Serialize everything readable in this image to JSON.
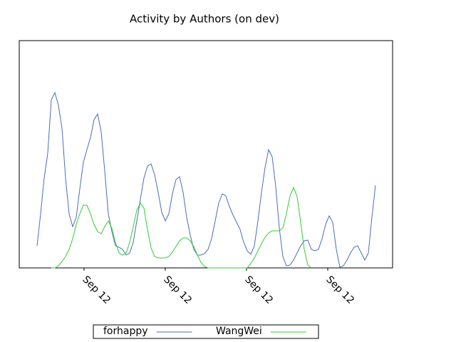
{
  "chart_data": {
    "type": "line",
    "title": "Activity by Authors (on dev)",
    "xlim": [
      0,
      104.8
    ],
    "ylim": [
      0,
      319
    ],
    "xticks": [
      {
        "value": 18.2,
        "label": "Sep 12"
      },
      {
        "value": 41,
        "label": "Sep 12"
      },
      {
        "value": 63.8,
        "label": "Sep 12"
      },
      {
        "value": 86.6,
        "label": "Sep 12"
      }
    ],
    "series": [
      {
        "name": "forhappy",
        "color": "#4a6db8",
        "x": [
          5,
          6,
          7,
          8,
          9,
          10,
          11,
          12,
          13,
          14,
          15,
          16,
          17,
          18,
          19,
          20,
          21,
          22,
          23,
          24,
          25,
          26,
          27,
          28,
          29,
          30,
          31,
          32,
          33,
          34,
          35,
          36,
          37,
          38,
          39,
          40,
          41,
          42,
          43,
          44,
          45,
          46,
          47,
          48,
          49,
          50,
          51,
          52,
          53,
          54,
          55,
          56,
          57,
          58,
          59,
          60,
          61,
          62,
          63,
          64,
          65,
          66,
          67,
          68,
          69,
          70,
          71,
          72,
          73,
          74,
          75,
          76,
          77,
          78,
          79,
          80,
          81,
          82,
          83,
          84,
          85,
          86,
          87,
          88,
          89,
          90,
          91,
          92,
          93,
          94,
          95,
          96,
          97,
          98,
          99,
          100
        ],
        "values": [
          31,
          76,
          126,
          161,
          236,
          246,
          228,
          196,
          126,
          76,
          58,
          71,
          111,
          148,
          166,
          183,
          208,
          216,
          191,
          136,
          76,
          51,
          31,
          29,
          26,
          18,
          21,
          36,
          66,
          96,
          126,
          143,
          146,
          131,
          106,
          78,
          66,
          76,
          104,
          124,
          128,
          106,
          71,
          46,
          26,
          18,
          18,
          20,
          26,
          41,
          66,
          91,
          104,
          101,
          86,
          74,
          64,
          54,
          36,
          24,
          19,
          31,
          66,
          106,
          141,
          166,
          156,
          114,
          56,
          16,
          3,
          4,
          11,
          21,
          31,
          38,
          39,
          26,
          24,
          26,
          41,
          61,
          73,
          64,
          26,
          1,
          3,
          11,
          21,
          29,
          31,
          21,
          11,
          21,
          71,
          116
        ]
      },
      {
        "name": "WangWei",
        "color": "#33cc33",
        "x": [
          9,
          10,
          11,
          12,
          13,
          14,
          15,
          16,
          17,
          18,
          19,
          20,
          21,
          22,
          23,
          24,
          25,
          26,
          27,
          28,
          29,
          30,
          31,
          32,
          33,
          34,
          35,
          36,
          37,
          38,
          39,
          40,
          41,
          42,
          43,
          44,
          45,
          46,
          47,
          48,
          49,
          50,
          51,
          52,
          53,
          54,
          55,
          56,
          57,
          58,
          59,
          60,
          61,
          62,
          63,
          64,
          65,
          66,
          67,
          68,
          69,
          70,
          71,
          72,
          73,
          74,
          75,
          76,
          77,
          78,
          79,
          80,
          81,
          82
        ],
        "values": [
          0,
          0,
          3,
          9,
          16,
          26,
          41,
          61,
          76,
          88,
          88,
          76,
          61,
          51,
          48,
          58,
          66,
          56,
          36,
          21,
          18,
          21,
          36,
          58,
          81,
          91,
          84,
          54,
          28,
          16,
          14,
          14,
          14,
          16,
          22,
          30,
          38,
          42,
          42,
          38,
          30,
          18,
          8,
          2,
          0,
          0,
          0,
          0,
          0,
          0,
          0,
          0,
          0,
          0,
          0,
          0,
          6,
          14,
          24,
          34,
          43,
          49,
          52,
          52,
          52,
          56,
          76,
          101,
          113,
          100,
          64,
          26,
          4,
          0
        ]
      }
    ]
  }
}
